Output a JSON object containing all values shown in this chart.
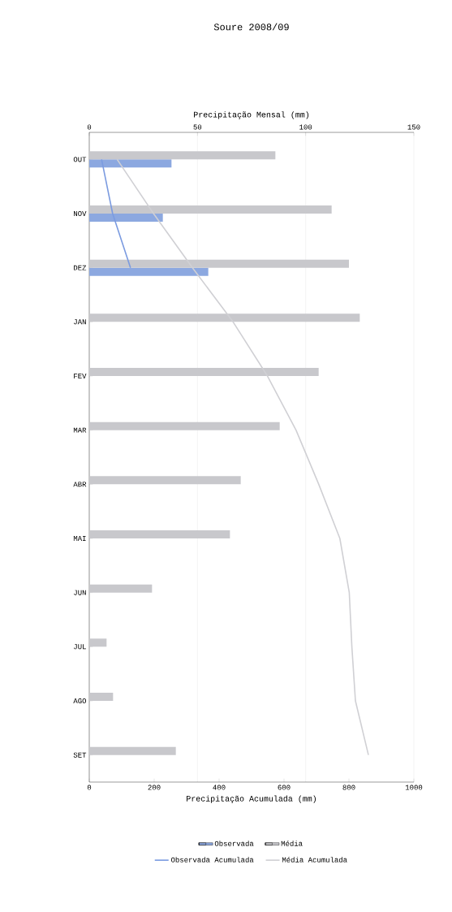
{
  "chart_data": {
    "type": "bar",
    "orientation": "horizontal",
    "title": "Soure 2008/09",
    "x2label": "Precipitação Mensal (mm)",
    "xlabel": "Precipitação Acumulada (mm)",
    "categories": [
      "OUT",
      "NOV",
      "DEZ",
      "JAN",
      "FEV",
      "MAR",
      "ABR",
      "MAI",
      "JUN",
      "JUL",
      "AGO",
      "SET"
    ],
    "series": [
      {
        "name": "Observada",
        "axis": "x2",
        "color": "#8ca8e0",
        "values": [
          38,
          34,
          55,
          null,
          null,
          null,
          null,
          null,
          null,
          null,
          null,
          null
        ]
      },
      {
        "name": "Média",
        "axis": "x2",
        "color": "#c8c8cc",
        "values": [
          86,
          112,
          120,
          125,
          106,
          88,
          70,
          65,
          29,
          8,
          11,
          40
        ]
      },
      {
        "name": "Observada Acumulada",
        "type": "line",
        "color": "#7b9be0",
        "values": [
          38,
          72,
          127,
          null,
          null,
          null,
          null,
          null,
          null,
          null,
          null,
          null
        ]
      },
      {
        "name": "Média Acumulada",
        "type": "line",
        "color": "#d0d0d4",
        "values": [
          86,
          198,
          318,
          443,
          549,
          637,
          707,
          772,
          801,
          809,
          820,
          860
        ]
      }
    ],
    "xlim": [
      0,
      1000
    ],
    "xticks": [
      0,
      200,
      400,
      600,
      800,
      1000
    ],
    "x2lim": [
      0,
      150
    ],
    "x2ticks": [
      0,
      50,
      100,
      150
    ],
    "grid": "x",
    "legend": "bottom"
  }
}
